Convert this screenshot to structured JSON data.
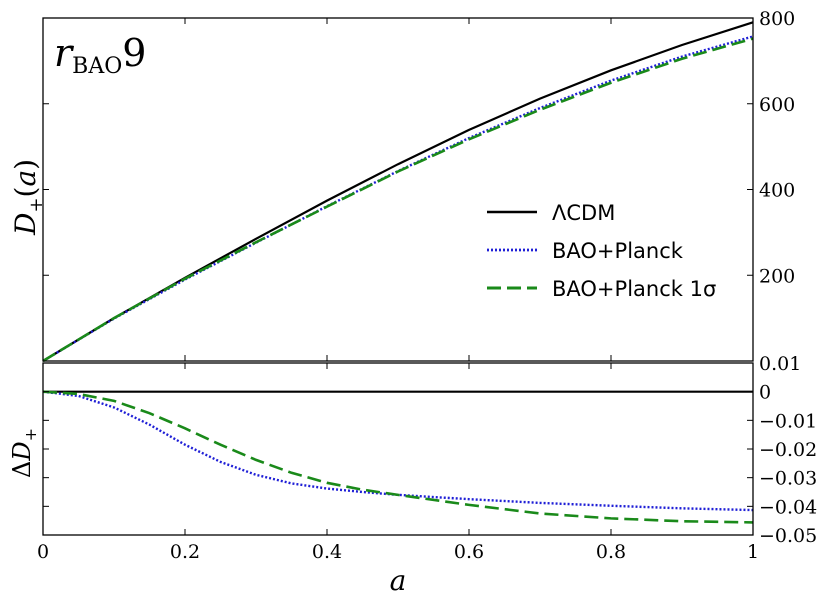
{
  "chart_data": [
    {
      "type": "line",
      "panel": "top",
      "annotation": "r_BAO 9",
      "ylabel": "D+(a)",
      "xlabel": "",
      "xlim": [
        0,
        1
      ],
      "ylim": [
        0,
        800
      ],
      "y_axis_side": "right",
      "ytick_labels": [
        "200",
        "400",
        "600",
        "800"
      ],
      "legend_location": "center-right",
      "series": [
        {
          "name": "ΛCDM",
          "style": "solid",
          "color": "#000000",
          "x": [
            0,
            0.1,
            0.2,
            0.3,
            0.4,
            0.5,
            0.6,
            0.7,
            0.8,
            0.9,
            1.0
          ],
          "y": [
            0,
            100,
            194,
            285,
            374,
            459,
            539,
            612,
            678,
            737,
            790
          ]
        },
        {
          "name": "BAO+Planck",
          "style": "dotted",
          "color": "#1f1fd6",
          "x": [
            0,
            0.1,
            0.2,
            0.3,
            0.4,
            0.5,
            0.6,
            0.7,
            0.8,
            0.9,
            1.0
          ],
          "y": [
            0,
            99,
            190,
            276,
            361,
            443,
            520,
            590,
            654,
            710,
            757
          ]
        },
        {
          "name": "BAO+Planck 1σ",
          "style": "dashed",
          "color": "#1a8a1a",
          "x": [
            0,
            0.1,
            0.2,
            0.3,
            0.4,
            0.5,
            0.6,
            0.7,
            0.8,
            0.9,
            1.0
          ],
          "y": [
            0,
            100,
            192,
            277,
            360,
            442,
            517,
            586,
            649,
            705,
            752
          ]
        }
      ]
    },
    {
      "type": "line",
      "panel": "bottom",
      "ylabel": "ΔD+",
      "xlabel": "a",
      "xlim": [
        0,
        1
      ],
      "ylim": [
        -0.05,
        0.01
      ],
      "y_axis_side": "right",
      "xtick_labels": [
        "0",
        "0.2",
        "0.4",
        "0.6",
        "0.8",
        "1"
      ],
      "ytick_labels": [
        "0.01",
        "0",
        "−0.01",
        "−0.02",
        "−0.03",
        "−0.04",
        "−0.05"
      ],
      "series": [
        {
          "name": "ΛCDM",
          "style": "solid",
          "color": "#000000",
          "x": [
            0,
            1
          ],
          "y": [
            0,
            0
          ]
        },
        {
          "name": "BAO+Planck",
          "style": "dotted",
          "color": "#1f1fd6",
          "x": [
            0,
            0.05,
            0.1,
            0.15,
            0.2,
            0.25,
            0.3,
            0.35,
            0.4,
            0.45,
            0.5,
            0.6,
            0.7,
            0.8,
            0.9,
            1.0
          ],
          "y": [
            0,
            -0.0015,
            -0.0055,
            -0.0115,
            -0.0185,
            -0.0245,
            -0.029,
            -0.032,
            -0.0338,
            -0.035,
            -0.036,
            -0.0375,
            -0.0388,
            -0.0398,
            -0.0407,
            -0.0413
          ]
        },
        {
          "name": "BAO+Planck 1σ",
          "style": "dashed",
          "color": "#1a8a1a",
          "x": [
            0,
            0.05,
            0.1,
            0.15,
            0.2,
            0.25,
            0.3,
            0.35,
            0.4,
            0.45,
            0.5,
            0.6,
            0.7,
            0.8,
            0.9,
            1.0
          ],
          "y": [
            0,
            -0.0008,
            -0.0032,
            -0.0075,
            -0.0128,
            -0.0185,
            -0.0238,
            -0.0283,
            -0.0318,
            -0.0342,
            -0.036,
            -0.0395,
            -0.0425,
            -0.0442,
            -0.0452,
            -0.0456
          ]
        }
      ]
    }
  ]
}
